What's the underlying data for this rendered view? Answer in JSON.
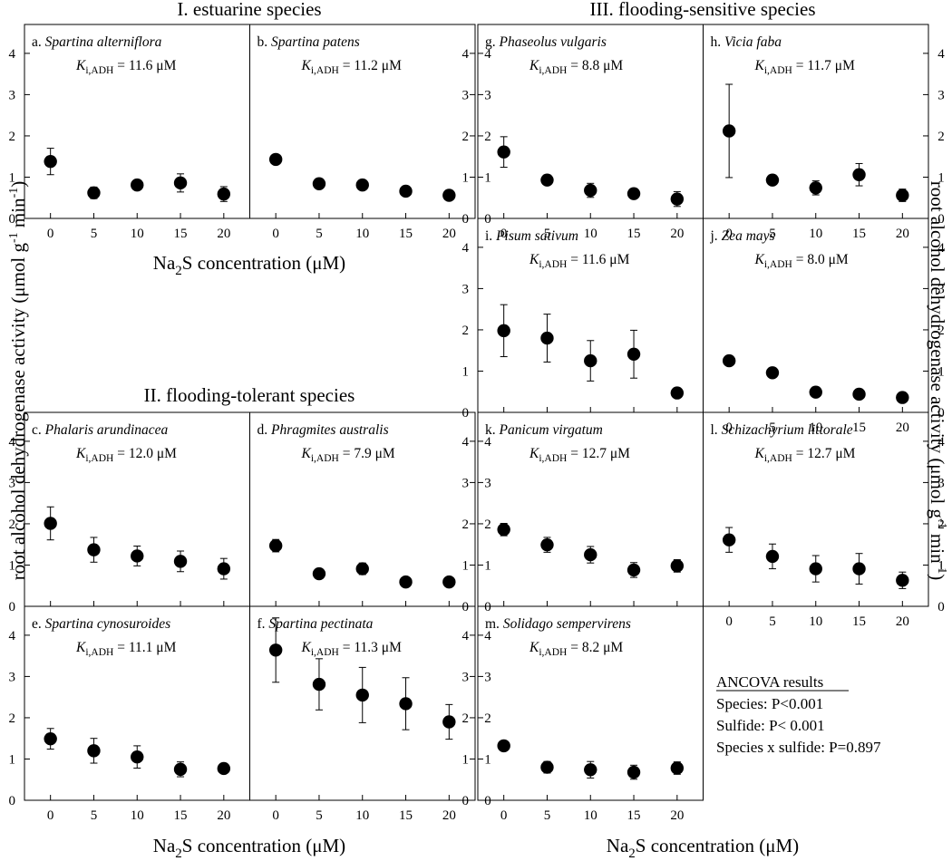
{
  "figure": {
    "section_titles": {
      "estuarine": "I. estuarine species",
      "flooding_tolerant": "II. flooding-tolerant species",
      "flooding_sensitive": "III. flooding-sensitive species"
    },
    "x_axis_label_prefix": "Na",
    "x_axis_label_subscript": "2",
    "x_axis_label_suffix": "S concentration (μM)",
    "y_axis_label_main": "root alcohol dehydrogenase activity (μmol g",
    "y_axis_label_sup1": "-1",
    "y_axis_label_mid": " min",
    "y_axis_label_sup2": "-1",
    "y_axis_label_end": ")",
    "x_ticks": [
      0,
      5,
      10,
      15,
      20
    ],
    "y_ticks": [
      0,
      1,
      2,
      3,
      4
    ],
    "ancova": {
      "title": "ANCOVA results",
      "species": "Species: P<0.001",
      "sulfide": "Sulfide: P< 0.001",
      "interaction": "Species x sulfide: P=0.897"
    },
    "k_label_symbol": "K",
    "k_label_subscript": "i,ADH"
  },
  "chart_data": [
    {
      "type": "scatter",
      "letter": "a.",
      "species": "Spartina alterniflora",
      "k_text": "= 11.6 μM",
      "x": [
        0,
        5,
        10,
        15,
        20
      ],
      "y": [
        1.38,
        0.62,
        0.81,
        0.86,
        0.59
      ],
      "err": [
        0.32,
        0.14,
        0.0,
        0.22,
        0.18
      ],
      "xlim": [
        -3,
        23
      ],
      "ylim": [
        0,
        4.7
      ],
      "xlabel": "Na2S concentration (μM)",
      "ylabel": "root alcohol dehydrogenase activity (μmol g-1 min-1)"
    },
    {
      "type": "scatter",
      "letter": "b.",
      "species": "Spartina patens",
      "k_text": "= 11.2 μM",
      "x": [
        0,
        5,
        10,
        15,
        20
      ],
      "y": [
        1.43,
        0.84,
        0.81,
        0.66,
        0.56
      ],
      "err": [
        0.06,
        0.0,
        0.0,
        0.0,
        0.0
      ],
      "xlim": [
        -3,
        23
      ],
      "ylim": [
        0,
        4.7
      ],
      "xlabel": "Na2S concentration (μM)",
      "ylabel": "root alcohol dehydrogenase activity (μmol g-1 min-1)"
    },
    {
      "type": "scatter",
      "letter": "c.",
      "species": "Phalaris arundinacea",
      "k_text": "= 12.0 μM",
      "x": [
        0,
        5,
        10,
        15,
        20
      ],
      "y": [
        2.01,
        1.37,
        1.22,
        1.09,
        0.91
      ],
      "err": [
        0.4,
        0.3,
        0.24,
        0.25,
        0.25
      ],
      "xlim": [
        -3,
        23
      ],
      "ylim": [
        0,
        4.7
      ],
      "xlabel": "Na2S concentration (μM)",
      "ylabel": "root alcohol dehydrogenase activity (μmol g-1 min-1)"
    },
    {
      "type": "scatter",
      "letter": "d.",
      "species": "Phragmites australis",
      "k_text": "= 7.9 μM",
      "x": [
        0,
        5,
        10,
        15,
        20
      ],
      "y": [
        1.47,
        0.79,
        0.91,
        0.59,
        0.59
      ],
      "err": [
        0.15,
        0.0,
        0.14,
        0.0,
        0.0
      ],
      "xlim": [
        -3,
        23
      ],
      "ylim": [
        0,
        4.7
      ],
      "xlabel": "Na2S concentration (μM)",
      "ylabel": "root alcohol dehydrogenase activity (μmol g-1 min-1)"
    },
    {
      "type": "scatter",
      "letter": "e.",
      "species": "Spartina cynosuroides",
      "k_text": "= 11.1 μM",
      "x": [
        0,
        5,
        10,
        15,
        20
      ],
      "y": [
        1.49,
        1.2,
        1.05,
        0.75,
        0.77
      ],
      "err": [
        0.25,
        0.3,
        0.27,
        0.18,
        0.0
      ],
      "xlim": [
        -3,
        23
      ],
      "ylim": [
        0,
        4.7
      ],
      "xlabel": "Na2S concentration (μM)",
      "ylabel": "root alcohol dehydrogenase activity (μmol g-1 min-1)"
    },
    {
      "type": "scatter",
      "letter": "f.",
      "species": "Spartina pectinata",
      "k_text": "= 11.3 μM",
      "x": [
        0,
        5,
        10,
        15,
        20
      ],
      "y": [
        3.64,
        2.81,
        2.55,
        2.34,
        1.9
      ],
      "err": [
        0.78,
        0.62,
        0.67,
        0.63,
        0.42
      ],
      "xlim": [
        -3,
        23
      ],
      "ylim": [
        0,
        4.7
      ],
      "xlabel": "Na2S concentration (μM)",
      "ylabel": "root alcohol dehydrogenase activity (μmol g-1 min-1)"
    },
    {
      "type": "scatter",
      "letter": "g.",
      "species": "Phaseolus vulgaris",
      "k_text": "= 8.8 μM",
      "x": [
        0,
        5,
        10,
        15,
        20
      ],
      "y": [
        1.61,
        0.93,
        0.68,
        0.6,
        0.47
      ],
      "err": [
        0.37,
        0.0,
        0.17,
        0.0,
        0.18
      ],
      "xlim": [
        -3,
        23
      ],
      "ylim": [
        0,
        4.7
      ],
      "xlabel": "Na2S concentration (μM)",
      "ylabel": "root alcohol dehydrogenase activity (μmol g-1 min-1)"
    },
    {
      "type": "scatter",
      "letter": "h.",
      "species": "Vicia faba",
      "k_text": "= 11.7 μM",
      "x": [
        0,
        5,
        10,
        15,
        20
      ],
      "y": [
        2.12,
        0.93,
        0.74,
        1.06,
        0.56
      ],
      "err": [
        1.13,
        0.0,
        0.17,
        0.27,
        0.15
      ],
      "xlim": [
        -3,
        23
      ],
      "ylim": [
        0,
        4.7
      ],
      "xlabel": "Na2S concentration (μM)",
      "ylabel": "root alcohol dehydrogenase activity (μmol g-1 min-1)"
    },
    {
      "type": "scatter",
      "letter": "i.",
      "species": "Pisum sativum",
      "k_text": "= 11.6 μM",
      "x": [
        0,
        5,
        10,
        15,
        20
      ],
      "y": [
        1.98,
        1.8,
        1.25,
        1.41,
        0.47
      ],
      "err": [
        0.63,
        0.58,
        0.49,
        0.58,
        0.0
      ],
      "xlim": [
        -3,
        23
      ],
      "ylim": [
        0,
        4.7
      ],
      "xlabel": "Na2S concentration (μM)",
      "ylabel": "root alcohol dehydrogenase activity (μmol g-1 min-1)"
    },
    {
      "type": "scatter",
      "letter": "j.",
      "species": "Zea mays",
      "k_text": "= 8.0 μM",
      "x": [
        0,
        5,
        10,
        15,
        20
      ],
      "y": [
        1.25,
        0.96,
        0.49,
        0.44,
        0.36
      ],
      "err": [
        0.0,
        0.0,
        0.0,
        0.0,
        0.0
      ],
      "xlim": [
        -3,
        23
      ],
      "ylim": [
        0,
        4.7
      ],
      "xlabel": "Na2S concentration (μM)",
      "ylabel": "root alcohol dehydrogenase activity (μmol g-1 min-1)"
    },
    {
      "type": "scatter",
      "letter": "k.",
      "species": "Panicum virgatum",
      "k_text": "= 12.7 μM",
      "x": [
        0,
        5,
        10,
        15,
        20
      ],
      "y": [
        1.86,
        1.49,
        1.25,
        0.88,
        0.98
      ],
      "err": [
        0.15,
        0.18,
        0.2,
        0.18,
        0.15
      ],
      "xlim": [
        -3,
        23
      ],
      "ylim": [
        0,
        4.7
      ],
      "xlabel": "Na2S concentration (μM)",
      "ylabel": "root alcohol dehydrogenase activity (μmol g-1 min-1)"
    },
    {
      "type": "scatter",
      "letter": "l.",
      "species": "Schizachyrium littorale",
      "k_text": "= 12.7 μM",
      "x": [
        0,
        5,
        10,
        15,
        20
      ],
      "y": [
        1.61,
        1.21,
        0.91,
        0.91,
        0.63
      ],
      "err": [
        0.3,
        0.3,
        0.32,
        0.37,
        0.2
      ],
      "xlim": [
        -3,
        23
      ],
      "ylim": [
        0,
        4.7
      ],
      "xlabel": "Na2S concentration (μM)",
      "ylabel": "root alcohol dehydrogenase activity (μmol g-1 min-1)"
    },
    {
      "type": "scatter",
      "letter": "m.",
      "species": "Solidago sempervirens",
      "k_text": "= 8.2 μM",
      "x": [
        0,
        5,
        10,
        15,
        20
      ],
      "y": [
        1.32,
        0.8,
        0.74,
        0.68,
        0.78
      ],
      "err": [
        0.0,
        0.14,
        0.2,
        0.17,
        0.15
      ],
      "xlim": [
        -3,
        23
      ],
      "ylim": [
        0,
        4.7
      ],
      "xlabel": "Na2S concentration (μM)",
      "ylabel": "root alcohol dehydrogenase activity (μmol g-1 min-1)"
    }
  ]
}
